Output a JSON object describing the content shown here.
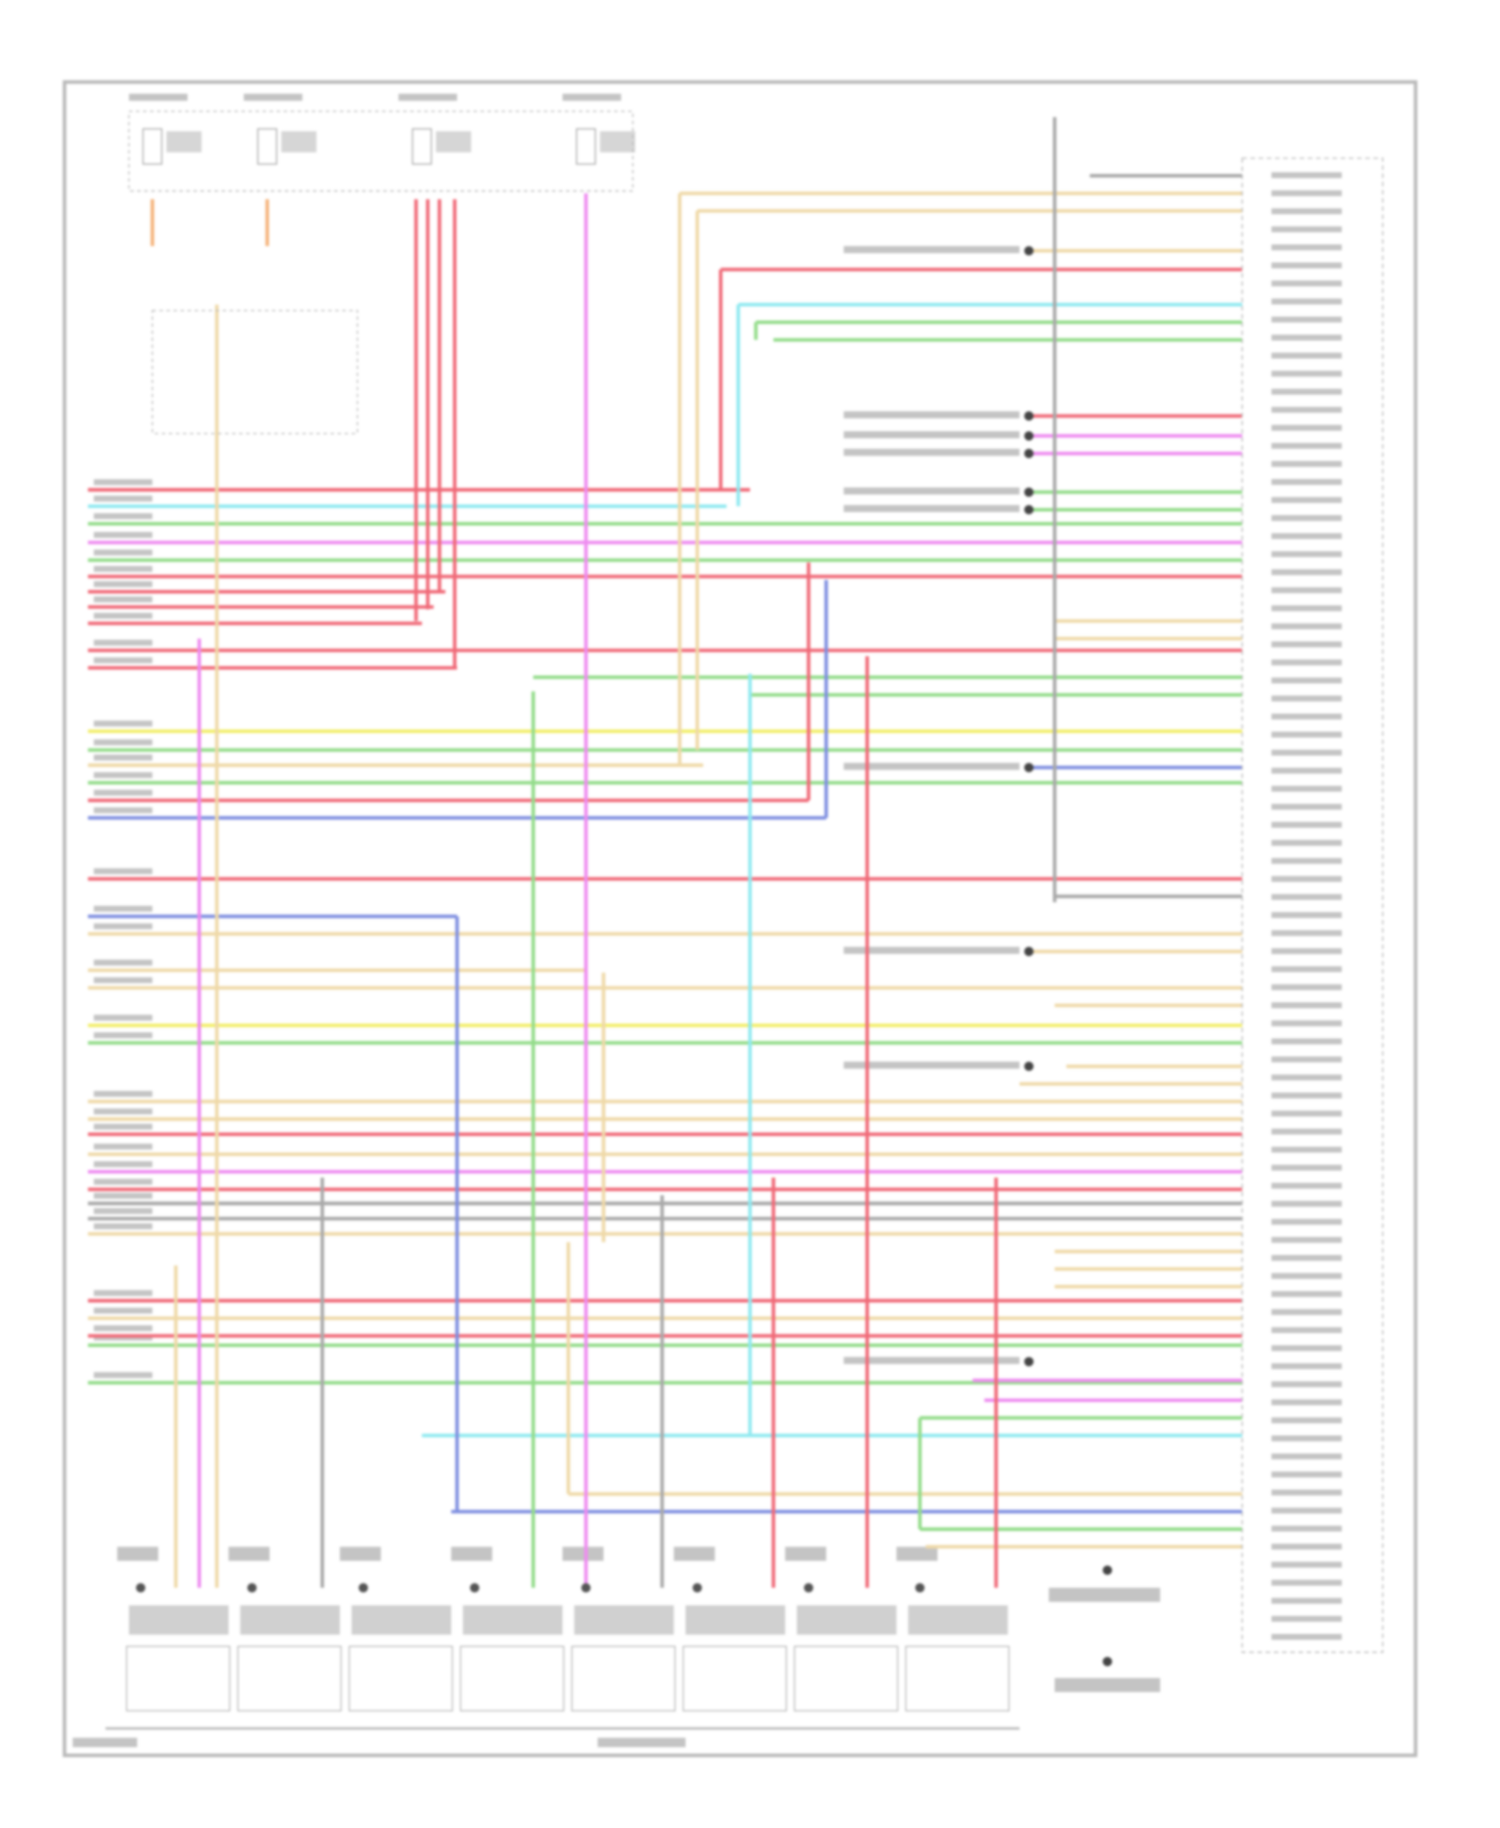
{
  "diagram": {
    "colors": {
      "frame": "#b9b9b9",
      "label": "#c4c4c4",
      "red": "#f06a78",
      "pink": "#f7a1a8",
      "tan": "#efd9a8",
      "orange": "#f5b37a",
      "yellow": "#f2ee6a",
      "green": "#93dc8a",
      "cyan": "#8fe9f0",
      "blue": "#7f8fe0",
      "magenta": "#ee8cf0",
      "grey": "#a9a9a9"
    }
  }
}
